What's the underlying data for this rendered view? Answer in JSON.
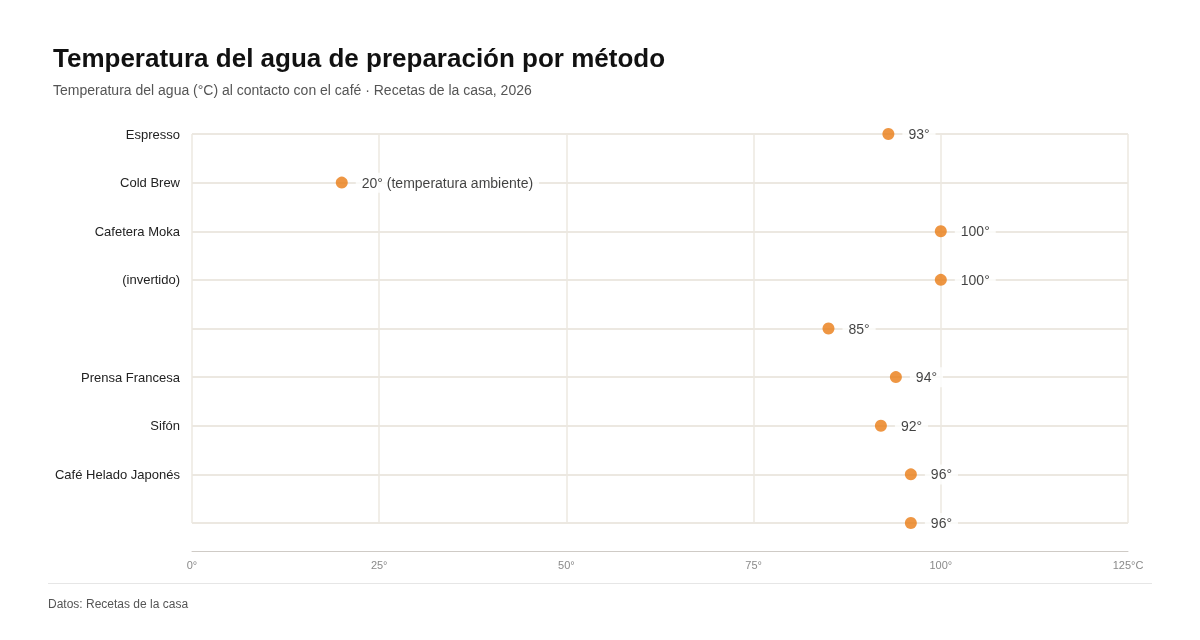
{
  "chart_data": {
    "type": "scatter",
    "title": "Temperatura del agua de preparación por método",
    "subtitle": "Temperatura del agua (°C) al contacto con el café · Recetas de la casa, 2026",
    "annotations": [
      "Datos: Recetas de la casa"
    ],
    "orientation": "horizontal",
    "categories": [
      "Espresso",
      "Cold Brew",
      "Cafetera Moka",
      "(invertido)",
      null,
      "Prensa Francesa",
      "Sifón",
      "Café Helado Japonés",
      null
    ],
    "values": [
      93,
      20,
      100,
      100,
      85,
      94,
      92,
      96,
      96
    ],
    "value_labels": [
      "93°",
      "20° (temperatura ambiente)",
      "100°",
      "100°",
      "85°",
      "94°",
      "92°",
      "96°",
      "96°"
    ],
    "color": "#ea7c14",
    "marker": "circle",
    "xlim": [
      0,
      125
    ],
    "xticks": [
      {
        "value": 0,
        "label": "0°"
      },
      {
        "value": 25,
        "label": "25°"
      },
      {
        "value": 50,
        "label": "50°"
      },
      {
        "value": 75,
        "label": "75°"
      },
      {
        "value": 100,
        "label": "100°"
      },
      {
        "value": 125,
        "label": "125°C"
      }
    ],
    "grid": true
  }
}
